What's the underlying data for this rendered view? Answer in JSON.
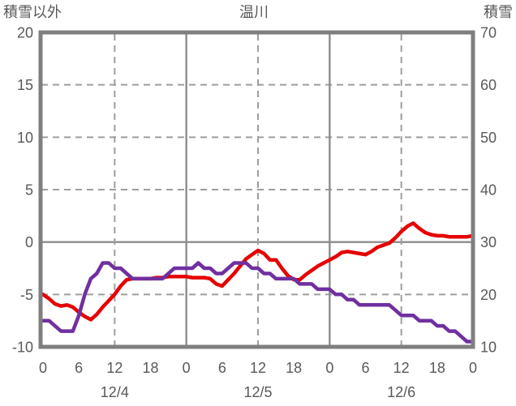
{
  "page": {
    "title": "温川"
  },
  "chart_data": {
    "type": "line",
    "title": "温川",
    "left_axis": {
      "label": "積雪以外",
      "min": -10,
      "max": 20,
      "ticks": [
        20,
        15,
        10,
        5,
        0,
        -5,
        -10
      ]
    },
    "right_axis": {
      "label": "積雪",
      "min": 10,
      "max": 70,
      "ticks": [
        70,
        60,
        50,
        40,
        30,
        20,
        10
      ]
    },
    "x_axis": {
      "unit": "hour",
      "min": 0,
      "max": 72,
      "tick_hours": [
        0,
        6,
        12,
        18,
        24,
        30,
        36,
        42,
        48,
        54,
        60,
        66,
        72
      ],
      "tick_labels": [
        "0",
        "6",
        "12",
        "18",
        "0",
        "6",
        "12",
        "18",
        "0",
        "6",
        "12",
        "18",
        "0"
      ],
      "date_labels": [
        {
          "text": "12/4",
          "center_hour": 12
        },
        {
          "text": "12/5",
          "center_hour": 36
        },
        {
          "text": "12/6",
          "center_hour": 60
        }
      ],
      "solid_grid_hours": [
        24,
        48
      ],
      "dashed_grid_hours": [
        12,
        36,
        60
      ]
    },
    "h_grid": {
      "solid_values": [
        0
      ],
      "dashed_values": [
        15,
        10,
        5,
        -5
      ]
    },
    "series": [
      {
        "name": "積雪以外",
        "axis": "left",
        "color": "#e60000",
        "values": [
          -5.0,
          -5.4,
          -5.9,
          -6.1,
          -6.0,
          -6.2,
          -6.7,
          -7.1,
          -7.4,
          -6.9,
          -6.2,
          -5.6,
          -5.0,
          -4.2,
          -3.6,
          -3.5,
          -3.5,
          -3.5,
          -3.5,
          -3.4,
          -3.4,
          -3.3,
          -3.3,
          -3.3,
          -3.3,
          -3.4,
          -3.4,
          -3.4,
          -3.5,
          -4.0,
          -4.2,
          -3.6,
          -3.0,
          -2.3,
          -1.6,
          -1.2,
          -0.8,
          -1.1,
          -1.7,
          -1.7,
          -2.5,
          -3.2,
          -3.6,
          -3.6,
          -3.1,
          -2.7,
          -2.3,
          -2.0,
          -1.7,
          -1.4,
          -1.0,
          -0.9,
          -1.0,
          -1.1,
          -1.2,
          -0.9,
          -0.5,
          -0.3,
          -0.1,
          0.4,
          1.0,
          1.5,
          1.8,
          1.3,
          0.9,
          0.7,
          0.6,
          0.6,
          0.5,
          0.5,
          0.5,
          0.5,
          0.6
        ]
      },
      {
        "name": "積雪",
        "axis": "right",
        "color": "#7030a0",
        "values": [
          15,
          15,
          14,
          13,
          13,
          13,
          16,
          20,
          23,
          24,
          26,
          26,
          25,
          25,
          24,
          23,
          23,
          23,
          23,
          23,
          23,
          24,
          25,
          25,
          25,
          25,
          26,
          25,
          25,
          24,
          24,
          25,
          26,
          26,
          26,
          25,
          25,
          24,
          24,
          23,
          23,
          23,
          23,
          22,
          22,
          22,
          21,
          21,
          21,
          20,
          20,
          19,
          19,
          18,
          18,
          18,
          18,
          18,
          18,
          17,
          16,
          16,
          16,
          15,
          15,
          15,
          14,
          14,
          13,
          13,
          12,
          11,
          11
        ]
      }
    ],
    "styles": {
      "background": "#ffffff",
      "frame_color": "#7f7f7f",
      "solid_grid_color": "#8c8c8c",
      "dashed_grid_color": "#9e9e9e",
      "text_color": "#595959"
    }
  }
}
